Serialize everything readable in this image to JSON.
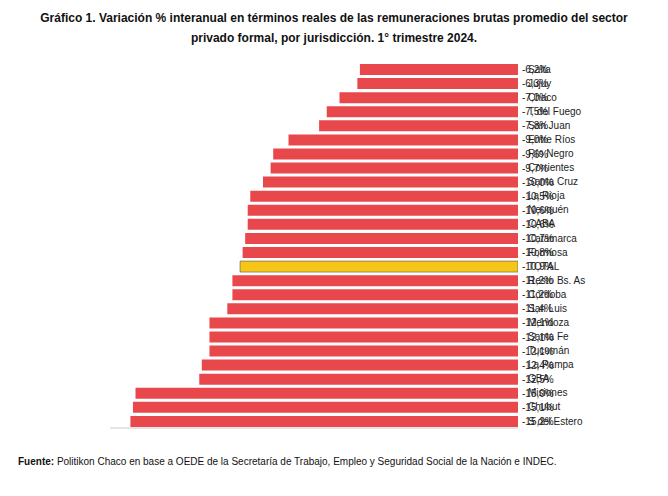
{
  "chart_data": {
    "type": "bar",
    "orientation": "horizontal",
    "title": "Gráfico 1. Variación % interanual en términos reales de las remuneraciones brutas promedio del sector\nprivado formal, por jurisdicción. 1° trimestre 2024.",
    "source": "Fuente: Politikon Chaco en base a OEDE de la Secretaría de Trabajo, Empleo y Seguridad Social de la Nación e INDEC.",
    "categories": [
      "Salta",
      "Jujuy",
      "Chaco",
      "T del Fuego",
      "San Juan",
      "Entre Ríos",
      "Río Negro",
      "Corrientes",
      "Santa Cruz",
      "La Rioja",
      "Neuquén",
      "CABA",
      "Catamarca",
      "Formosa",
      "TOTAL",
      "Resto Bs. As",
      "Córdoba",
      "San Luis",
      "Mendoza",
      "Santa Fe",
      "Tucumán",
      "La Pampa",
      "GBA",
      "Misiones",
      "Chubut",
      "S del Estero"
    ],
    "values": [
      -6.2,
      -6.3,
      -7.0,
      -7.5,
      -7.8,
      -9.0,
      -9.6,
      -9.7,
      -10.0,
      -10.5,
      -10.6,
      -10.6,
      -10.7,
      -10.8,
      -10.9,
      -11.2,
      -11.2,
      -11.4,
      -12.1,
      -12.1,
      -12.1,
      -12.4,
      -12.5,
      -15.0,
      -15.1,
      -15.2
    ],
    "value_labels": [
      "-6,2%",
      "-6,3%",
      "-7,0%",
      "-7,5%",
      "-7,8%",
      "-9,0%",
      "-9,6%",
      "-9,7%",
      "-10,0%",
      "-10,5%",
      "-10,6%",
      "-10,6%",
      "-10,7%",
      "-10,8%",
      "-10,9%",
      "-11,2%",
      "-11,2%",
      "-11,4%",
      "-12,1%",
      "-12,1%",
      "-12,1%",
      "-12,4%",
      "-12,5%",
      "-15,0%",
      "-15,1%",
      "-15,2%"
    ],
    "colors": [
      "#e8484b",
      "#e8484b",
      "#e8484b",
      "#e8484b",
      "#e8484b",
      "#e8484b",
      "#e8484b",
      "#e8484b",
      "#e8484b",
      "#e8484b",
      "#e8484b",
      "#e8484b",
      "#e8484b",
      "#e8484b",
      "#f5c518",
      "#e8484b",
      "#e8484b",
      "#e8484b",
      "#e8484b",
      "#e8484b",
      "#e8484b",
      "#e8484b",
      "#e8484b",
      "#e8484b",
      "#e8484b",
      "#e8484b"
    ],
    "xlim": [
      -16,
      0
    ],
    "data_labels": true,
    "tick_labels": "y",
    "grid": false
  }
}
